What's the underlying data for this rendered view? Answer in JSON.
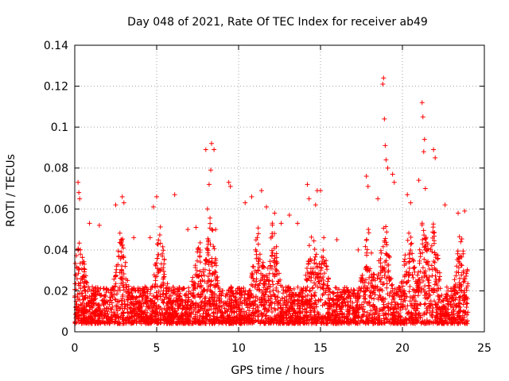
{
  "chart_data": {
    "type": "scatter",
    "title": "Day 048 of 2021, Rate Of TEC Index for receiver ab49",
    "xlabel": "GPS time / hours",
    "ylabel": "ROTI / TECUs",
    "xlim": [
      0,
      25
    ],
    "ylim": [
      0,
      0.14
    ],
    "x_ticks": [
      "0",
      "5",
      "10",
      "15",
      "20",
      "25"
    ],
    "y_ticks": [
      "0",
      "0.02",
      "0.04",
      "0.06",
      "0.08",
      "0.1",
      "0.12",
      "0.14"
    ],
    "grid": true,
    "marker": "+",
    "color": "#ff0000",
    "series": [
      {
        "x": [
          0.2,
          0.25,
          0.3,
          0.9,
          1.5,
          2.5,
          2.9,
          3.0,
          3.6,
          4.6,
          4.8,
          5.0,
          6.1,
          6.9,
          7.4,
          8.0,
          8.1,
          8.2,
          8.3,
          8.35,
          8.5,
          8.6,
          9.4,
          9.5,
          10.4,
          10.8,
          11.4,
          11.7,
          12.2,
          12.6,
          13.1,
          13.6,
          14.2,
          14.3,
          14.7,
          14.8,
          15.0,
          15.2,
          16.0,
          17.3,
          17.8,
          17.9,
          18.5,
          18.8,
          18.85,
          18.9,
          18.95,
          19.0,
          19.1,
          19.4,
          19.5,
          20.3,
          20.5,
          21.0,
          21.2,
          21.25,
          21.3,
          21.35,
          21.4,
          21.9,
          22.0,
          22.6,
          23.4,
          23.8
        ],
        "y": [
          0.073,
          0.068,
          0.065,
          0.053,
          0.052,
          0.062,
          0.066,
          0.063,
          0.046,
          0.046,
          0.061,
          0.066,
          0.067,
          0.05,
          0.051,
          0.089,
          0.06,
          0.072,
          0.079,
          0.092,
          0.089,
          0.05,
          0.073,
          0.071,
          0.063,
          0.066,
          0.069,
          0.061,
          0.058,
          0.053,
          0.057,
          0.053,
          0.072,
          0.065,
          0.062,
          0.069,
          0.069,
          0.046,
          0.045,
          0.04,
          0.076,
          0.071,
          0.065,
          0.121,
          0.124,
          0.104,
          0.091,
          0.084,
          0.08,
          0.077,
          0.073,
          0.067,
          0.063,
          0.074,
          0.112,
          0.105,
          0.088,
          0.094,
          0.07,
          0.089,
          0.085,
          0.062,
          0.058,
          0.059
        ]
      }
    ]
  }
}
